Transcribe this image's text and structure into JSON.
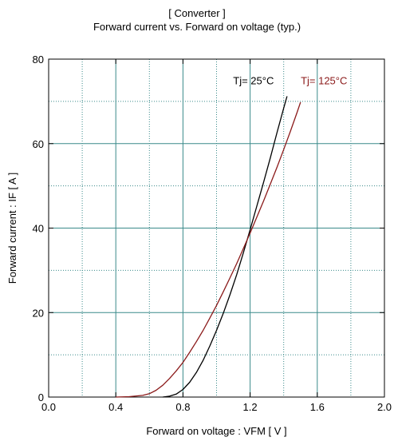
{
  "chart_data": {
    "type": "line",
    "title": "[ Converter ]",
    "subtitle": "Forward current  vs.  Forward on voltage  (typ.)",
    "xlabel": "Forward on voltage  :  VFM  [ V ]",
    "ylabel": "Forward current  :  IF  [ A ]",
    "xlim": [
      0.0,
      2.0
    ],
    "ylim": [
      0,
      80
    ],
    "x_ticks": [
      "0.0",
      "0.4",
      "0.8",
      "1.2",
      "1.6",
      "2.0"
    ],
    "y_ticks": [
      "0",
      "20",
      "40",
      "60",
      "80"
    ],
    "grid": true,
    "series": [
      {
        "name": "Tj= 25°C",
        "color": "#000000",
        "x": [
          0.68,
          0.72,
          0.76,
          0.8,
          0.84,
          0.88,
          0.92,
          0.96,
          1.0,
          1.04,
          1.08,
          1.12,
          1.16,
          1.2,
          1.24,
          1.28,
          1.32,
          1.36,
          1.4,
          1.42
        ],
        "y": [
          0,
          0.2,
          0.7,
          1.8,
          3.5,
          5.8,
          8.7,
          12.1,
          15.8,
          19.8,
          24.2,
          29.0,
          34.2,
          39.6,
          45.2,
          50.8,
          56.6,
          62.6,
          68.4,
          71.2
        ]
      },
      {
        "name": "Tj= 125°C",
        "color": "#8b1a1a",
        "x": [
          0.4,
          0.48,
          0.56,
          0.6,
          0.64,
          0.68,
          0.72,
          0.76,
          0.8,
          0.84,
          0.88,
          0.92,
          0.96,
          1.0,
          1.04,
          1.08,
          1.12,
          1.16,
          1.2,
          1.24,
          1.28,
          1.32,
          1.36,
          1.4,
          1.44,
          1.48,
          1.5
        ],
        "y": [
          0,
          0.1,
          0.4,
          0.8,
          1.6,
          2.8,
          4.4,
          6.2,
          8.2,
          10.6,
          13.1,
          15.8,
          18.7,
          21.7,
          24.9,
          28.2,
          31.6,
          35.2,
          38.8,
          42.6,
          46.4,
          50.4,
          54.4,
          58.6,
          62.9,
          67.4,
          69.8
        ]
      }
    ]
  }
}
